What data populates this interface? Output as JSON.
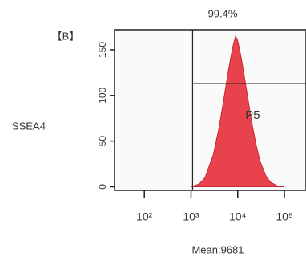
{
  "chart_data": {
    "type": "area",
    "title": "99.4%",
    "panel_label": "【B】",
    "y_label": "SSEA4",
    "gate_label": "P5",
    "footer": "Mean:9681",
    "color": "#e8434c",
    "log_x": true,
    "x": [
      1000,
      1500,
      2000,
      3000,
      4000,
      5000,
      6000,
      7000,
      8000,
      9000,
      10000,
      12000,
      15000,
      20000,
      25000,
      30000,
      40000,
      50000,
      70000,
      100000
    ],
    "values": [
      0,
      3,
      10,
      35,
      65,
      95,
      120,
      140,
      155,
      165,
      160,
      140,
      110,
      70,
      45,
      28,
      12,
      5,
      1,
      0
    ],
    "xlim": [
      23,
      290000
    ],
    "xticks": [
      {
        "value": 100,
        "label": "10²"
      },
      {
        "value": 1000,
        "label": "10³"
      },
      {
        "value": 10000,
        "label": "10⁴"
      },
      {
        "value": 100000,
        "label": "10⁵"
      }
    ],
    "ylim": [
      -4,
      172
    ],
    "yticks": [
      0,
      50,
      100,
      150
    ],
    "gate": {
      "x": 1080,
      "y": 113
    }
  }
}
